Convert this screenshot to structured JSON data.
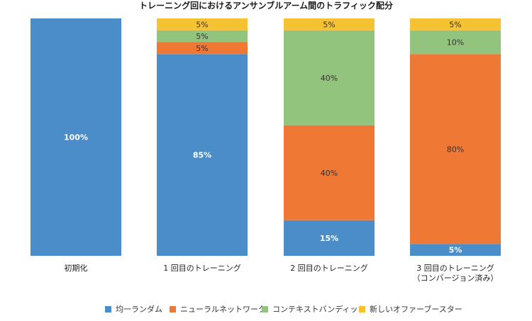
{
  "chart_data": {
    "type": "bar",
    "stacked": true,
    "title": "トレーニング回におけるアンサンブルアーム間のトラフィック配分",
    "xlabel": "",
    "ylabel": "",
    "ylim": [
      0,
      100
    ],
    "grid": false,
    "legend_position": "bottom",
    "categories": [
      [
        "初期化"
      ],
      [
        "1 回目のトレーニング"
      ],
      [
        "2 回目のトレーニング"
      ],
      [
        "3 回目のトレーニング",
        "（コンバージョン済み）"
      ]
    ],
    "series": [
      {
        "name": "均一ランダム",
        "color": "#4a8dc8",
        "values": [
          100,
          85,
          15,
          5
        ],
        "labels": [
          "100%",
          "85%",
          "15%",
          "5%"
        ],
        "label_color": "#ffffff",
        "label_bold": true
      },
      {
        "name": "ニューラルネットワーク",
        "color": "#f07835",
        "values": [
          0,
          5,
          40,
          80
        ],
        "labels": [
          "",
          "5%",
          "40%",
          "80%"
        ],
        "label_color": "#333333",
        "label_bold": false
      },
      {
        "name": "コンテキストバンディット",
        "color": "#93c47d",
        "values": [
          0,
          5,
          40,
          10
        ],
        "labels": [
          "",
          "5%",
          "40%",
          "10%"
        ],
        "label_color": "#333333",
        "label_bold": false
      },
      {
        "name": "新しいオファーブースター",
        "color": "#f5c234",
        "values": [
          0,
          5,
          5,
          5
        ],
        "labels": [
          "",
          "5%",
          "5%",
          "5%"
        ],
        "label_color": "#333333",
        "label_bold": false
      }
    ]
  }
}
